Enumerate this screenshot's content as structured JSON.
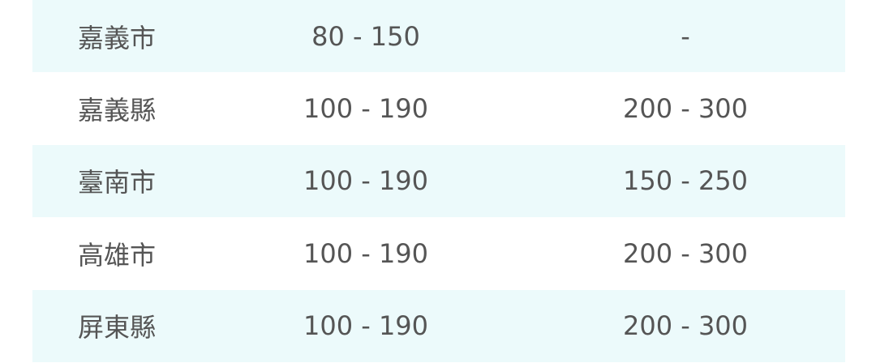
{
  "rows": [
    {
      "region": "嘉義市",
      "col2": "80 - 150",
      "col3": "-"
    },
    {
      "region": "嘉義縣",
      "col2": "100 - 190",
      "col3": "200 - 300"
    },
    {
      "region": "臺南市",
      "col2": "100 - 190",
      "col3": "150 - 250"
    },
    {
      "region": "高雄市",
      "col2": "100 - 190",
      "col3": "200 - 300"
    },
    {
      "region": "屏東縣",
      "col2": "100 - 190",
      "col3": "200 - 300"
    }
  ],
  "colors": {
    "stripe": "#ecfafb",
    "text": "#555555"
  }
}
